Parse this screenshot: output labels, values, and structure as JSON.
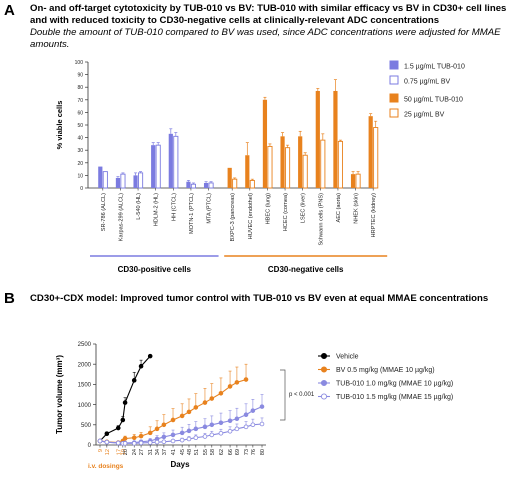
{
  "panel_a": {
    "letter": "A",
    "heading": "On- and off-target cytotoxicity by TUB-010 vs BV: TUB-010 with similar efficacy vs BV in CD30+ cell lines and with reduced toxicity to CD30-negative cells at clinically-relevant ADC concentrations",
    "subtitle": "Double the amount of TUB-010 compared to BV was used, since ADC concentrations were adjusted for MMAE amounts.",
    "groups": [
      {
        "label": "CD30-positive cells",
        "color": "#7b7be0"
      },
      {
        "label": "CD30-negative cells",
        "color": "#e8821e"
      }
    ]
  },
  "panel_b": {
    "letter": "B",
    "heading": "CD30+-CDX model: Improved tumor control with TUB-010 vs BV even at equal MMAE concentrations",
    "dosing_label": "i.v. dosings",
    "p_label": "p < 0.001"
  },
  "chart_data": [
    {
      "type": "bar",
      "ylabel": "% viable cells",
      "ylim": [
        0,
        100
      ],
      "yticks": [
        0,
        10,
        20,
        30,
        40,
        50,
        60,
        70,
        80,
        90,
        100
      ],
      "categories": [
        "SR-786 (ALCL)",
        "Karpas-299 (ALCL)",
        "L-540 (HL)",
        "HDLM-2 (HL)",
        "HH (CTCL)",
        "MOTN-1 (PTCL)",
        "MTA (PTCL)",
        "BXPC-3 (pancreas)",
        "HUVEC (endothel)",
        "HBEC (lung)",
        "HCEC (cornea)",
        "LSEC (liver)",
        "Schwann cells (PNS)",
        "AEC (aorta)",
        "NHEK (skin)",
        "HRPTEC (kidney)"
      ],
      "series": [
        {
          "name": "1.5 µg/mL TUB-010",
          "color": "#7b7be0",
          "fill": "solid",
          "values": [
            17,
            8,
            10,
            34,
            43,
            5,
            4,
            null,
            null,
            null,
            null,
            null,
            null,
            null,
            null,
            null
          ],
          "errors": [
            0,
            1,
            2,
            2,
            4,
            1,
            1,
            null,
            null,
            null,
            null,
            null,
            null,
            null,
            null,
            null
          ]
        },
        {
          "name": "0.75 µg/mL BV",
          "color": "#7b7be0",
          "fill": "open",
          "values": [
            13,
            11,
            12,
            34,
            41,
            3,
            4,
            null,
            null,
            null,
            null,
            null,
            null,
            null,
            null,
            null
          ],
          "errors": [
            0,
            1,
            1,
            2,
            3,
            1,
            1,
            null,
            null,
            null,
            null,
            null,
            null,
            null,
            null,
            null
          ]
        },
        {
          "name": "50 µg/mL TUB-010",
          "color": "#e8821e",
          "fill": "solid",
          "values": [
            null,
            null,
            null,
            null,
            null,
            null,
            null,
            16,
            26,
            70,
            41,
            41,
            77,
            77,
            11,
            57
          ],
          "errors": [
            null,
            null,
            null,
            null,
            null,
            null,
            null,
            0,
            10,
            2,
            3,
            4,
            2,
            9,
            2,
            2
          ]
        },
        {
          "name": "25 µg/mL BV",
          "color": "#e8821e",
          "fill": "open",
          "values": [
            null,
            null,
            null,
            null,
            null,
            null,
            null,
            7,
            6,
            33,
            32,
            26,
            38,
            37,
            11,
            48
          ],
          "errors": [
            null,
            null,
            null,
            null,
            null,
            null,
            null,
            1,
            1,
            2,
            2,
            2,
            5,
            1,
            2,
            5
          ]
        }
      ]
    },
    {
      "type": "line",
      "ylabel": "Tumor volume (mm³)",
      "xlabel": "Days",
      "ylim": [
        0,
        2500
      ],
      "yticks": [
        0,
        500,
        1000,
        1500,
        2000,
        2500
      ],
      "x_ticks": [
        9,
        12,
        17,
        19,
        20,
        24,
        27,
        31,
        34,
        37,
        41,
        45,
        48,
        51,
        55,
        58,
        62,
        66,
        69,
        73,
        76,
        80
      ],
      "dosing_days": [
        9,
        12,
        17,
        19
      ],
      "series": [
        {
          "name": "Vehicle",
          "color": "#000000",
          "marker": "filled",
          "x": [
            9,
            12,
            17,
            19,
            20,
            24,
            27,
            31
          ],
          "y": [
            100,
            280,
            420,
            620,
            1050,
            1600,
            1950,
            2200
          ],
          "err": [
            20,
            40,
            60,
            80,
            120,
            200,
            150,
            0
          ]
        },
        {
          "name": "BV 0.5 mg/kg (MMAE 10 µg/kg)",
          "color": "#e8821e",
          "marker": "filled",
          "x": [
            9,
            12,
            17,
            19,
            20,
            24,
            27,
            31,
            34,
            37,
            41,
            45,
            48,
            51,
            55,
            58,
            62,
            66,
            69,
            73
          ],
          "y": [
            100,
            80,
            60,
            100,
            160,
            180,
            220,
            300,
            400,
            500,
            620,
            720,
            820,
            930,
            1050,
            1150,
            1280,
            1450,
            1550,
            1620
          ],
          "err": [
            20,
            20,
            20,
            30,
            60,
            80,
            90,
            150,
            200,
            250,
            280,
            300,
            320,
            340,
            350,
            370,
            380,
            380,
            380,
            380
          ]
        },
        {
          "name": "TUB-010 1.0 mg/kg (MMAE 10 µg/kg)",
          "color": "#8a8ae0",
          "marker": "filled",
          "x": [
            9,
            12,
            17,
            19,
            20,
            24,
            27,
            31,
            34,
            37,
            41,
            45,
            48,
            51,
            55,
            58,
            62,
            66,
            69,
            73,
            76,
            80
          ],
          "y": [
            100,
            70,
            50,
            40,
            50,
            60,
            80,
            100,
            150,
            200,
            250,
            300,
            350,
            400,
            450,
            500,
            550,
            600,
            650,
            750,
            850,
            950
          ],
          "err": [
            20,
            15,
            15,
            15,
            20,
            30,
            40,
            60,
            80,
            100,
            120,
            140,
            160,
            180,
            200,
            220,
            240,
            250,
            260,
            270,
            280,
            300
          ]
        },
        {
          "name": "TUB-010 1.5 mg/kg (MMAE 15 µg/kg)",
          "color": "#8a8ae0",
          "marker": "open",
          "x": [
            9,
            12,
            17,
            19,
            20,
            24,
            27,
            31,
            34,
            37,
            41,
            45,
            48,
            51,
            55,
            58,
            62,
            66,
            69,
            73,
            76,
            80
          ],
          "y": [
            100,
            70,
            50,
            40,
            40,
            40,
            50,
            60,
            70,
            80,
            100,
            120,
            150,
            180,
            210,
            250,
            290,
            340,
            400,
            450,
            500,
            520
          ],
          "err": [
            15,
            10,
            10,
            10,
            10,
            10,
            15,
            20,
            25,
            30,
            40,
            50,
            60,
            70,
            80,
            90,
            100,
            110,
            120,
            130,
            140,
            150
          ]
        }
      ]
    }
  ]
}
